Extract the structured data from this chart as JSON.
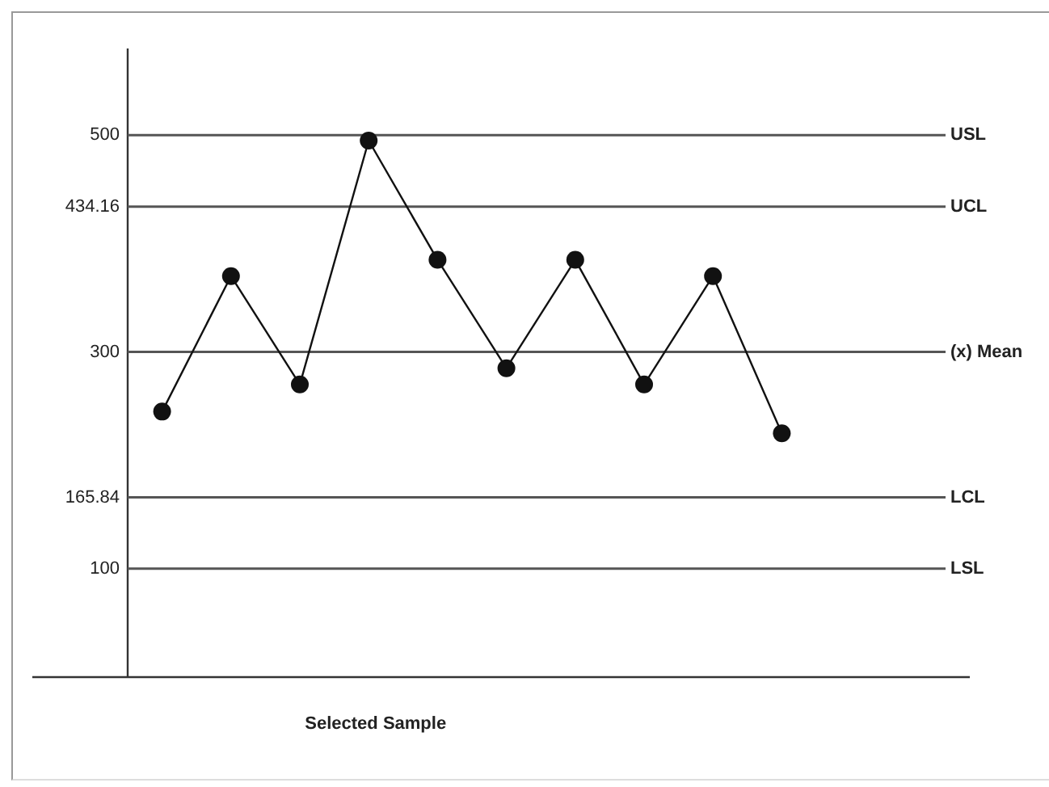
{
  "chart_data": {
    "type": "line",
    "xlabel": "Selected Sample",
    "categories": [
      null,
      null,
      null,
      null,
      null,
      null,
      null,
      null,
      null,
      null
    ],
    "series": [
      {
        "color": "#111111",
        "values": [
          245,
          370,
          270,
          495,
          385,
          285,
          385,
          270,
          370,
          225
        ]
      }
    ],
    "ylim": [
      0,
      580
    ],
    "yticks": [
      100,
      165.84,
      300,
      434.16,
      500
    ],
    "tick_labels": "y",
    "marker": "circle",
    "line_style": "solid",
    "ref_lines": [
      {
        "axis": "y",
        "value": 500,
        "label": "USL",
        "color": "#555555"
      },
      {
        "axis": "y",
        "value": 434.16,
        "label": "UCL",
        "color": "#555555"
      },
      {
        "axis": "y",
        "value": 300,
        "label": "(x) Mean",
        "color": "#555555"
      },
      {
        "axis": "y",
        "value": 165.84,
        "label": "LCL",
        "color": "#555555"
      },
      {
        "axis": "y",
        "value": 100,
        "label": "LSL",
        "color": "#555555"
      }
    ]
  }
}
